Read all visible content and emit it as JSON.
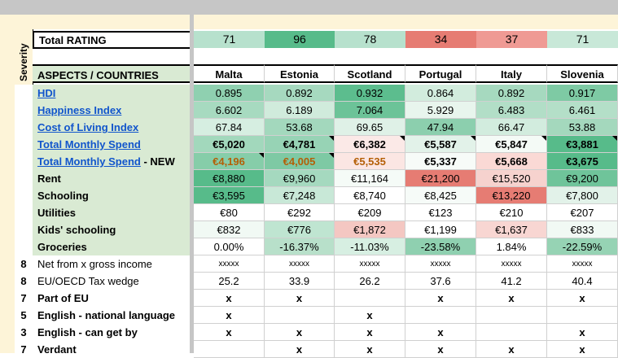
{
  "total_rating": {
    "label": "Total RATING",
    "values": [
      "71",
      "96",
      "78",
      "34",
      "37",
      "71"
    ],
    "colors": [
      "#b7e1cd",
      "#57bb8a",
      "#b7e1cd",
      "#e67c73",
      "#ef9a94",
      "#c8e8d8"
    ]
  },
  "severity_label": "Severity",
  "header": {
    "aspects_label": "ASPECTS / COUNTRIES",
    "countries": [
      "Malta",
      "Estonia",
      "Scotland",
      "Portugal",
      "Italy",
      "Slovenia"
    ]
  },
  "rows": [
    {
      "sev": "",
      "label": "HDI",
      "link": true,
      "suffix": "",
      "values": [
        "0.895",
        "0.892",
        "0.932",
        "0.864",
        "0.892",
        "0.917"
      ],
      "colors": [
        "#8fd0b0",
        "#a6d9bf",
        "#5cbd8e",
        "#d2ecdd",
        "#a6d9bf",
        "#7ecaa4"
      ],
      "bold": false
    },
    {
      "sev": "",
      "label": "Happiness Index",
      "link": true,
      "suffix": "",
      "values": [
        "6.602",
        "6.189",
        "7.064",
        "5.929",
        "6.483",
        "6.461"
      ],
      "colors": [
        "#a7dac0",
        "#d0ebdc",
        "#6cc398",
        "#e8f5ed",
        "#b2dec7",
        "#b4dfc8"
      ],
      "bold": false
    },
    {
      "sev": "",
      "label": "Cost of Living Index",
      "link": true,
      "suffix": "",
      "values": [
        "67.84",
        "53.68",
        "69.65",
        "47.94",
        "66.47",
        "53.88"
      ],
      "colors": [
        "#d6eee1",
        "#a3d8bd",
        "#dff1e7",
        "#8ccfae",
        "#d2ecde",
        "#a4d8bd"
      ],
      "bold": false
    },
    {
      "sev": "",
      "label": "Total Monthly Spend",
      "link": true,
      "suffix": "",
      "values": [
        "€5,020",
        "€4,781",
        "€6,382",
        "€5,587",
        "€5,847",
        "€3,881"
      ],
      "colors": [
        "#a2d8bc",
        "#97d3b5",
        "#fbe9e7",
        "#e2f2e9",
        "#f4faf6",
        "#57bb8a"
      ],
      "bold": true,
      "corner": [
        false,
        true,
        true,
        true,
        true,
        true
      ]
    },
    {
      "sev": "",
      "label": "Total Monthly Spend",
      "link": true,
      "suffix": " - NEW",
      "values": [
        "€4,196",
        "€4,005",
        "€5,535",
        "€5,337",
        "€5,668",
        "€3,675"
      ],
      "colors": [
        "#86cda9",
        "#7ec9a4",
        "#fbe6e3",
        "#f7fbf8",
        "#fad9d5",
        "#57bb8a"
      ],
      "bold": true,
      "orange": [
        true,
        true,
        true,
        false,
        false,
        false
      ],
      "corner": [
        true,
        true,
        false,
        false,
        false,
        false
      ]
    },
    {
      "sev": "",
      "label": "Rent",
      "link": false,
      "suffix": "",
      "values": [
        "€8,880",
        "€9,960",
        "€11,164",
        "€21,200",
        "€15,520",
        "€9,200"
      ],
      "colors": [
        "#57bb8a",
        "#a5d9bf",
        "#f5fbf7",
        "#e67c73",
        "#f6d2ce",
        "#6fc49a"
      ],
      "bold": false
    },
    {
      "sev": "",
      "label": "Schooling",
      "link": false,
      "suffix": "",
      "values": [
        "€3,595",
        "€7,248",
        "€8,740",
        "€8,425",
        "€13,220",
        "€7,800"
      ],
      "colors": [
        "#57bb8a",
        "#c8e8d7",
        "#ffffff",
        "#f6fbf8",
        "#e67c73",
        "#e2f2e9"
      ],
      "bold": false
    },
    {
      "sev": "",
      "label": "Utilities",
      "link": false,
      "suffix": "",
      "values": [
        "€80",
        "€292",
        "€209",
        "€123",
        "€210",
        "€207"
      ],
      "colors": [
        "#ffffff",
        "#ffffff",
        "#ffffff",
        "#ffffff",
        "#ffffff",
        "#ffffff"
      ],
      "bold": false
    },
    {
      "sev": "",
      "label": "Kids' schooling",
      "link": false,
      "suffix": "",
      "values": [
        "€832",
        "€776",
        "€1,872",
        "€1,199",
        "€1,637",
        "€833"
      ],
      "colors": [
        "#f1f9f4",
        "#bfe5d1",
        "#f4c7c2",
        "#ffffff",
        "#f8d6d2",
        "#f1f9f4"
      ],
      "bold": false
    },
    {
      "sev": "",
      "label": "Groceries",
      "link": false,
      "suffix": "",
      "values": [
        "0.00%",
        "-16.37%",
        "-11.03%",
        "-23.58%",
        "1.84%",
        "-22.59%"
      ],
      "colors": [
        "#ffffff",
        "#b8e0ca",
        "#d7efe2",
        "#8fd0b0",
        "#ffffff",
        "#96d3b4"
      ],
      "bold": false
    },
    {
      "sev": "8",
      "label": "Net from x gross income",
      "link": false,
      "suffix": "",
      "values": [
        "xxxxx",
        "xxxxx",
        "xxxxx",
        "xxxxx",
        "xxxxx",
        "xxxxx"
      ],
      "colors": [
        "#ffffff",
        "#ffffff",
        "#ffffff",
        "#ffffff",
        "#ffffff",
        "#ffffff"
      ],
      "bold": false,
      "plain": true,
      "small": true
    },
    {
      "sev": "8",
      "label": "EU/OECD Tax wedge",
      "link": false,
      "suffix": "",
      "values": [
        "25.2",
        "33.9",
        "26.2",
        "37.6",
        "41.2",
        "40.4"
      ],
      "colors": [
        "#ffffff",
        "#ffffff",
        "#ffffff",
        "#ffffff",
        "#ffffff",
        "#ffffff"
      ],
      "bold": false,
      "plain": true
    },
    {
      "sev": "7",
      "label": "Part of EU",
      "link": false,
      "suffix": "",
      "values": [
        "x",
        "x",
        "",
        "x",
        "x",
        "x"
      ],
      "colors": [
        "#ffffff",
        "#ffffff",
        "#ffffff",
        "#ffffff",
        "#ffffff",
        "#ffffff"
      ],
      "bold": false,
      "xmark": true
    },
    {
      "sev": "5",
      "label": "English - national language",
      "link": false,
      "suffix": "",
      "values": [
        "x",
        "",
        "x",
        "",
        "",
        ""
      ],
      "colors": [
        "#ffffff",
        "#ffffff",
        "#ffffff",
        "#ffffff",
        "#ffffff",
        "#ffffff"
      ],
      "bold": false,
      "xmark": true
    },
    {
      "sev": "3",
      "label": "English - can get by",
      "link": false,
      "suffix": "",
      "values": [
        "x",
        "x",
        "x",
        "x",
        "",
        "x"
      ],
      "colors": [
        "#ffffff",
        "#ffffff",
        "#ffffff",
        "#ffffff",
        "#ffffff",
        "#ffffff"
      ],
      "bold": false,
      "xmark": true
    },
    {
      "sev": "7",
      "label": "Verdant",
      "link": false,
      "suffix": "",
      "values": [
        "",
        "x",
        "x",
        "x",
        "x",
        "x"
      ],
      "colors": [
        "#ffffff",
        "#ffffff",
        "#ffffff",
        "#ffffff",
        "#ffffff",
        "#ffffff"
      ],
      "bold": false,
      "xmark": true
    }
  ]
}
